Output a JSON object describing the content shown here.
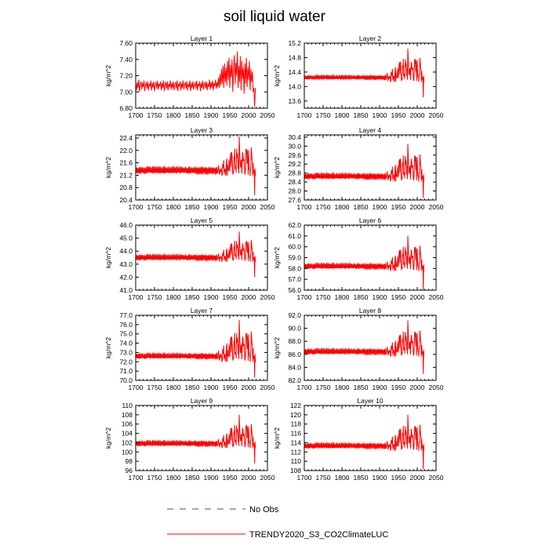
{
  "title": "soil liquid water",
  "legend": [
    {
      "label": "No Obs",
      "color": "#4444aa",
      "dash": true
    },
    {
      "label": "TRENDY2020_S3_CO2ClimateLUC",
      "color": "#ff0000",
      "dash": false
    }
  ],
  "chart_data": [
    {
      "type": "line",
      "title": "Layer 1",
      "ylabel": "kg/m^2",
      "xlim": [
        1700,
        2050
      ],
      "xticks": [
        1700,
        1750,
        1800,
        1850,
        1900,
        1950,
        2000,
        2050
      ],
      "ylim": [
        6.8,
        7.6
      ],
      "yticks": [
        "6.80",
        "7.00",
        "7.20",
        "7.40",
        "7.60"
      ],
      "series": [
        {
          "name": "TRENDY2020_S3_CO2ClimateLUC",
          "color": "#ff0000",
          "x": [
            1700,
            1702,
            1704,
            1706,
            1708,
            1710,
            1712,
            1714,
            1716,
            1718,
            1720,
            1722,
            1724,
            1726,
            1728,
            1730,
            1732,
            1734,
            1736,
            1738,
            1740,
            1742,
            1744,
            1746,
            1748,
            1750,
            1752,
            1754,
            1756,
            1758,
            1760,
            1762,
            1764,
            1766,
            1768,
            1770,
            1772,
            1774,
            1776,
            1778,
            1780,
            1782,
            1784,
            1786,
            1788,
            1790,
            1792,
            1794,
            1796,
            1798,
            1800,
            1802,
            1804,
            1806,
            1808,
            1810,
            1812,
            1814,
            1816,
            1818,
            1820,
            1822,
            1824,
            1826,
            1828,
            1830,
            1832,
            1834,
            1836,
            1838,
            1840,
            1842,
            1844,
            1846,
            1848,
            1850,
            1852,
            1854,
            1856,
            1858,
            1860,
            1862,
            1864,
            1866,
            1868,
            1870,
            1872,
            1874,
            1876,
            1878,
            1880,
            1882,
            1884,
            1886,
            1888,
            1890,
            1892,
            1894,
            1896,
            1898,
            1900,
            1902,
            1904,
            1906,
            1908,
            1910,
            1912,
            1914,
            1916,
            1918,
            1920,
            1922,
            1924,
            1926,
            1928,
            1930,
            1932,
            1934,
            1936,
            1938,
            1940,
            1942,
            1944,
            1946,
            1948,
            1950,
            1952,
            1954,
            1956,
            1958,
            1960,
            1962,
            1964,
            1966,
            1968,
            1970,
            1972,
            1974,
            1976,
            1978,
            1980,
            1982,
            1984,
            1986,
            1988,
            1990,
            1992,
            1994,
            1996,
            1998,
            2000,
            2002,
            2004,
            2006,
            2008,
            2010,
            2012,
            2014,
            2016,
            2018
          ],
          "y": [
            7.1,
            7.02,
            7.12,
            7.05,
            7.15,
            7.0,
            7.08,
            7.13,
            7.03,
            7.11,
            7.06,
            7.14,
            7.01,
            7.09,
            7.12,
            7.04,
            7.13,
            7.02,
            7.1,
            7.07,
            7.14,
            7.02,
            7.11,
            7.05,
            7.13,
            7.01,
            7.09,
            7.12,
            7.04,
            7.14,
            7.03,
            7.1,
            7.07,
            7.13,
            7.02,
            7.11,
            7.05,
            7.14,
            7.01,
            7.09,
            7.12,
            7.04,
            7.13,
            7.02,
            7.1,
            7.06,
            7.14,
            7.03,
            7.11,
            7.05,
            7.13,
            7.02,
            7.09,
            7.12,
            7.04,
            7.14,
            7.01,
            7.1,
            7.07,
            7.13,
            7.02,
            7.11,
            7.05,
            7.14,
            7.03,
            7.09,
            7.12,
            7.04,
            7.13,
            7.02,
            7.1,
            7.06,
            7.14,
            7.01,
            7.11,
            7.05,
            7.13,
            7.03,
            7.09,
            7.12,
            7.04,
            7.14,
            7.02,
            7.1,
            7.07,
            7.13,
            7.01,
            7.11,
            7.05,
            7.14,
            7.03,
            7.09,
            7.12,
            7.04,
            7.13,
            7.02,
            7.1,
            7.06,
            7.15,
            7.03,
            7.12,
            7.05,
            7.14,
            7.02,
            7.11,
            7.07,
            7.15,
            7.04,
            7.12,
            7.06,
            7.18,
            7.05,
            7.22,
            7.08,
            7.28,
            7.1,
            7.32,
            7.05,
            7.35,
            7.12,
            7.3,
            7.08,
            7.38,
            7.15,
            7.42,
            7.05,
            7.33,
            7.18,
            7.4,
            7.0,
            7.28,
            7.45,
            7.1,
            7.36,
            7.2,
            7.5,
            7.05,
            7.32,
            7.12,
            7.44,
            7.02,
            7.38,
            7.16,
            7.3,
            6.98,
            7.35,
            7.1,
            7.42,
            7.06,
            7.3,
            7.15,
            7.38,
            7.02,
            7.28,
            7.12,
            7.25,
            7.0,
            7.05,
            6.82,
            7.05
          ]
        }
      ]
    },
    {
      "type": "line",
      "title": "Layer 2",
      "ylabel": "kg/m^2",
      "xlim": [
        1700,
        2050
      ],
      "xticks": [
        1700,
        1750,
        1800,
        1850,
        1900,
        1950,
        2000,
        2050
      ],
      "ylim": [
        13.4,
        15.2
      ],
      "yticks": [
        "13.6",
        "14.0",
        "14.4",
        "14.8",
        "15.2"
      ],
      "series": [
        {
          "name": "TRENDY2020_S3_CO2ClimateLUC",
          "color": "#ff0000",
          "base": 14.25,
          "amp": 0.08,
          "peak": 15.05,
          "low": 13.7
        }
      ]
    },
    {
      "type": "line",
      "title": "Layer 3",
      "ylabel": "kg/m^2",
      "xlim": [
        1700,
        2050
      ],
      "xticks": [
        1700,
        1750,
        1800,
        1850,
        1900,
        1950,
        2000,
        2050
      ],
      "ylim": [
        20.4,
        22.5
      ],
      "yticks": [
        "20.4",
        "20.8",
        "21.2",
        "21.6",
        "22.0",
        "22.4"
      ],
      "series": [
        {
          "name": "TRENDY2020_S3_CO2ClimateLUC",
          "color": "#ff0000",
          "base": 21.35,
          "amp": 0.15,
          "peak": 22.45,
          "low": 20.55
        }
      ]
    },
    {
      "type": "line",
      "title": "Layer 4",
      "ylabel": "kg/m^2",
      "xlim": [
        1700,
        2050
      ],
      "xticks": [
        1700,
        1750,
        1800,
        1850,
        1900,
        1950,
        2000,
        2050
      ],
      "ylim": [
        27.6,
        30.5
      ],
      "yticks": [
        "27.6",
        "28.0",
        "28.4",
        "28.8",
        "29.2",
        "29.6",
        "30.0",
        "30.4"
      ],
      "series": [
        {
          "name": "TRENDY2020_S3_CO2ClimateLUC",
          "color": "#ff0000",
          "base": 28.65,
          "amp": 0.18,
          "peak": 30.1,
          "low": 27.7
        }
      ]
    },
    {
      "type": "line",
      "title": "Layer 5",
      "ylabel": "kg/m^2",
      "xlim": [
        1700,
        2050
      ],
      "xticks": [
        1700,
        1750,
        1800,
        1850,
        1900,
        1950,
        2000,
        2050
      ],
      "ylim": [
        41.0,
        46.0
      ],
      "yticks": [
        "41.0",
        "42.0",
        "43.0",
        "44.0",
        "45.0",
        "46.0"
      ],
      "series": [
        {
          "name": "TRENDY2020_S3_CO2ClimateLUC",
          "color": "#ff0000",
          "base": 43.5,
          "amp": 0.3,
          "peak": 45.5,
          "low": 42.0
        }
      ]
    },
    {
      "type": "line",
      "title": "Layer 6",
      "ylabel": "kg/m^2",
      "xlim": [
        1700,
        2050
      ],
      "xticks": [
        1700,
        1750,
        1800,
        1850,
        1900,
        1950,
        2000,
        2050
      ],
      "ylim": [
        56.0,
        62.0
      ],
      "yticks": [
        "56.0",
        "57.0",
        "58.0",
        "59.0",
        "60.0",
        "61.0",
        "62.0"
      ],
      "series": [
        {
          "name": "TRENDY2020_S3_CO2ClimateLUC",
          "color": "#ff0000",
          "base": 58.2,
          "amp": 0.35,
          "peak": 61.0,
          "low": 56.0
        }
      ]
    },
    {
      "type": "line",
      "title": "Layer 7",
      "ylabel": "kg/m^2",
      "xlim": [
        1700,
        2050
      ],
      "xticks": [
        1700,
        1750,
        1800,
        1850,
        1900,
        1950,
        2000,
        2050
      ],
      "ylim": [
        70.0,
        77.0
      ],
      "yticks": [
        "70.0",
        "71.0",
        "72.0",
        "73.0",
        "74.0",
        "75.0",
        "76.0",
        "77.0"
      ],
      "series": [
        {
          "name": "TRENDY2020_S3_CO2ClimateLUC",
          "color": "#ff0000",
          "base": 72.6,
          "amp": 0.4,
          "peak": 76.5,
          "low": 70.3
        }
      ]
    },
    {
      "type": "line",
      "title": "Layer 8",
      "ylabel": "kg/m^2",
      "xlim": [
        1700,
        2050
      ],
      "xticks": [
        1700,
        1750,
        1800,
        1850,
        1900,
        1950,
        2000,
        2050
      ],
      "ylim": [
        82.0,
        92.0
      ],
      "yticks": [
        "82.0",
        "84.0",
        "86.0",
        "88.0",
        "90.0",
        "92.0"
      ],
      "series": [
        {
          "name": "TRENDY2020_S3_CO2ClimateLUC",
          "color": "#ff0000",
          "base": 86.4,
          "amp": 0.6,
          "peak": 91.2,
          "low": 83.0
        }
      ]
    },
    {
      "type": "line",
      "title": "Layer 9",
      "ylabel": "kg/m^2",
      "xlim": [
        1700,
        2050
      ],
      "xticks": [
        1700,
        1750,
        1800,
        1850,
        1900,
        1950,
        2000,
        2050
      ],
      "ylim": [
        96,
        110
      ],
      "yticks": [
        "96",
        "98",
        "100",
        "102",
        "104",
        "106",
        "108",
        "110"
      ],
      "series": [
        {
          "name": "TRENDY2020_S3_CO2ClimateLUC",
          "color": "#ff0000",
          "base": 101.8,
          "amp": 0.8,
          "peak": 108.0,
          "low": 97.5
        }
      ]
    },
    {
      "type": "line",
      "title": "Layer 10",
      "ylabel": "kg/m^2",
      "xlim": [
        1700,
        2050
      ],
      "xticks": [
        1700,
        1750,
        1800,
        1850,
        1900,
        1950,
        2000,
        2050
      ],
      "ylim": [
        108,
        122
      ],
      "yticks": [
        "108",
        "110",
        "112",
        "114",
        "116",
        "118",
        "120",
        "122"
      ],
      "series": [
        {
          "name": "TRENDY2020_S3_CO2ClimateLUC",
          "color": "#ff0000",
          "base": 113.3,
          "amp": 0.8,
          "peak": 120.0,
          "low": 108.3
        }
      ]
    }
  ]
}
